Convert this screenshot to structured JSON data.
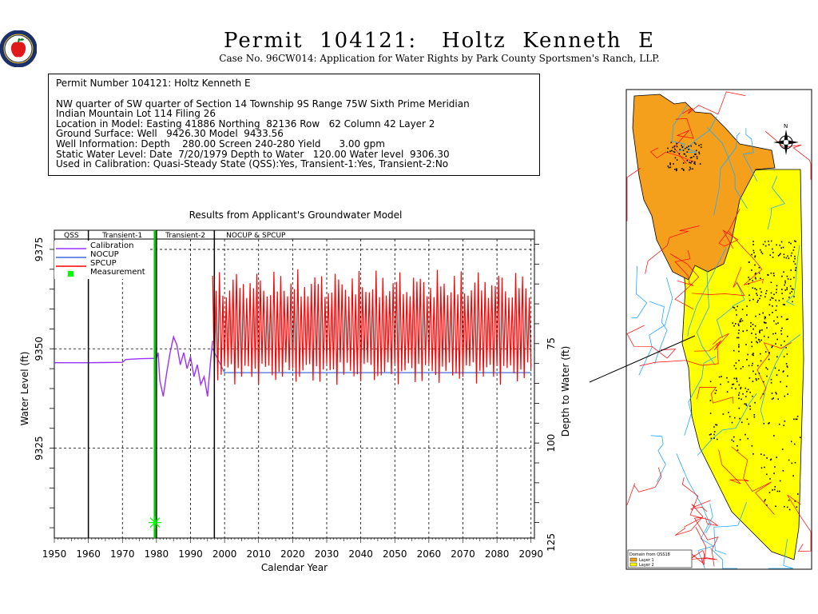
{
  "header": {
    "title": "Permit  104121:   Holtz  Kenneth  E",
    "subtitle": "Case No. 96CW014: Application for Water Rights by Park County Sportsmen's Ranch, LLP."
  },
  "info_box": {
    "lines": [
      "Permit Number 104121: Holtz Kenneth E",
      "NW quarter of SW quarter of Section 14 Township 9S Range 75W Sixth Prime Meridian",
      "Indian Mountain Lot 114 Filing 26",
      "Location in Model: Easting 41886 Northing  82136 Row   62 Column 42 Layer 2",
      "Ground Surface: Well   9426.30 Model  9433.56",
      "Well Information: Depth    280.00 Screen 240-280 Yield      3.00 gpm",
      "Static Water Level: Date  7/20/1979 Depth to Water   120.00 Water level  9306.30",
      "Used in Calibration: Quasi-Steady State (QSS):Yes, Transient-1:Yes, Transient-2:No"
    ]
  },
  "chart_data": {
    "type": "line",
    "title": "Results from Applicant's Groundwater Model",
    "xlabel": "Calendar Year",
    "ylabel": "Water Level (ft)",
    "y2label": "Depth to Water (ft)",
    "xlim": [
      1950,
      2091
    ],
    "ylim": [
      9302.4,
      9377.6
    ],
    "x_ticks": [
      1950,
      1960,
      1970,
      1980,
      1990,
      2000,
      2010,
      2020,
      2030,
      2040,
      2050,
      2060,
      2070,
      2080,
      2090
    ],
    "y_ticks": [
      9325,
      9350,
      9375
    ],
    "y2_ticks": [
      75,
      100,
      125
    ],
    "grid": true,
    "periods": [
      {
        "label": "QSS",
        "start": 1950,
        "end": 1960
      },
      {
        "label": "Transient-1",
        "start": 1960,
        "end": 1980
      },
      {
        "label": "Transient-2",
        "start": 1980,
        "end": 1997
      },
      {
        "label": "NOCUP  &  SPCUP",
        "start": 1997,
        "end": 2091
      }
    ],
    "legend": [
      "Calibration",
      "NOCUP",
      "SPCUP",
      "Measurement"
    ],
    "series": [
      {
        "name": "Calibration",
        "color": "#9b30ff",
        "x": [
          1950,
          1960,
          1970,
          1971,
          1975,
          1980,
          1980.5,
          1981,
          1982,
          1983,
          1984,
          1985,
          1986,
          1987,
          1988,
          1989,
          1990,
          1991,
          1992,
          1993,
          1994,
          1995,
          1996,
          1996.5
        ],
        "y": [
          9346.5,
          9346.5,
          9346.6,
          9347.3,
          9347.5,
          9347.6,
          9349,
          9342,
          9338,
          9344,
          9349,
          9353,
          9351,
          9346,
          9349,
          9345,
          9348,
          9343,
          9346,
          9341,
          9343,
          9338,
          9348,
          9352
        ]
      },
      {
        "name": "NOCUP",
        "color": "#4169e1",
        "x": [
          1996.5,
          2000,
          2010,
          2020,
          2030,
          2040,
          2050,
          2060,
          2070,
          2080,
          2090
        ],
        "y": [
          9350,
          9344,
          9344,
          9344,
          9344,
          9344,
          9344,
          9344,
          9344,
          9344,
          9344
        ]
      },
      {
        "name": "SPCUP",
        "color": "#ff0000",
        "low": 9336.5,
        "high": 9371,
        "x_range": [
          1996.5,
          2090
        ],
        "step": 1,
        "shape": "annual-oscillation"
      },
      {
        "name": "Measurement",
        "color": "#00ff00",
        "x": [
          1979.55
        ],
        "y": [
          9306.3
        ]
      }
    ]
  },
  "vertical_lines": [
    {
      "x": 1960,
      "color": "#000000"
    },
    {
      "x": 1979.55,
      "color": "#00cc00"
    },
    {
      "x": 1980,
      "color": "#000000"
    },
    {
      "x": 1997,
      "color": "#000000"
    }
  ],
  "map": {
    "colors": {
      "layer1": "#f4a01c",
      "layer2": "#ffff00",
      "streams": "#22aaff",
      "roads": "#ff0000"
    },
    "legend_title": "Domain from QSS18",
    "legend_items": [
      "Layer 1",
      "Layer 2"
    ],
    "compass": "N"
  }
}
